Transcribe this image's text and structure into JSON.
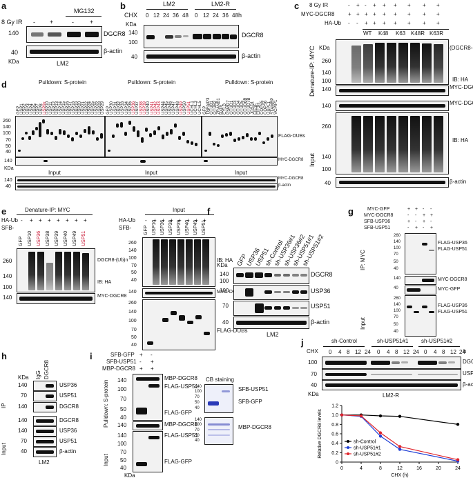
{
  "panels": {
    "a": {
      "label": "a",
      "mg132": "MG132",
      "ir": "8 Gy IR",
      "signs": [
        "-",
        "+",
        "-",
        "+"
      ],
      "mw": [
        "140",
        "40"
      ],
      "kda": "KDa",
      "targets": [
        "DGCR8",
        "β-actin"
      ],
      "cell": "LM2"
    },
    "b": {
      "label": "b",
      "cell_lines": [
        "LM2",
        "LM2-R"
      ],
      "chx": "CHX",
      "times": [
        "0",
        "12",
        "24",
        "36",
        "48",
        "0",
        "12",
        "24",
        "36",
        "48"
      ],
      "unit": "h",
      "mw": [
        "KDa",
        "140",
        "100",
        "40"
      ],
      "targets": [
        "DGCR8",
        "β-actin"
      ]
    },
    "c": {
      "label": "c",
      "rows": [
        {
          "name": "8 Gy IR",
          "signs": [
            "-",
            "+",
            "-",
            "+",
            "+",
            "+",
            "+",
            "+",
            "+"
          ]
        },
        {
          "name": "MYC-DGCR8",
          "signs": [
            "+",
            "+",
            "+",
            "+",
            "+",
            "+",
            "+",
            "+",
            "+"
          ]
        },
        {
          "name": "HA-Ub",
          "signs": [
            "-",
            "-",
            "+",
            "+",
            "+",
            "+",
            "+",
            "+",
            "+"
          ]
        }
      ],
      "ub_types": [
        "WT",
        "K48",
        "K63",
        "K48R",
        "K63R"
      ],
      "mw_ip": [
        "KDa",
        "260",
        "140",
        "100",
        "140"
      ],
      "mw_in": [
        "140",
        "260",
        "140",
        "100",
        "40"
      ],
      "sections": [
        "Denature-IP: MYC",
        "Input"
      ],
      "targets": [
        "(DGCR8-(Ub)n",
        "IB: HA",
        "MYC-DGCR8",
        "MYC-DGCR8",
        "IB: HA",
        "β-actin"
      ]
    },
    "d": {
      "label": "d",
      "pulldown": "Pulldown: S-protein",
      "group1": [
        "GFP",
        "USP1",
        "USP2",
        "USP3",
        "USP4",
        "USP5",
        "USP7",
        "USP8",
        "USP9x",
        "USP10",
        "USP11",
        "USP12",
        "USP13",
        "USP14",
        "USP15",
        "USP16",
        "USP17",
        "USP18",
        "USP19",
        "USP20",
        "USP21",
        "USP22",
        "USP24",
        "USP25",
        "USP26",
        "USP28",
        "USP29"
      ],
      "group2": [
        "GFP",
        "USP30",
        "USP31",
        "USP32",
        "USP33",
        "USP34",
        "USP35",
        "USP36",
        "USP37",
        "USP38",
        "USP39",
        "USP40",
        "USP41",
        "USP42",
        "USP43",
        "USP44",
        "USP45",
        "USP46",
        "USP47",
        "USP48",
        "USP49",
        "USP50",
        "USP51",
        "UCHL1",
        "UCHL3",
        "UCHL5"
      ],
      "group3": [
        "GFP",
        "TNFAIP3",
        "OTUB1",
        "OTUB2",
        "ZRANB1",
        "BAP1",
        "CYLD",
        "PSMD7",
        "OTUD1",
        "OTUD3",
        "OTUD4",
        "OTUD5",
        "OTUD6B",
        "OTUD7B",
        "JOSD1",
        "EIF3F",
        "EIF3H",
        "COPS5",
        "COPS6",
        "USPL1",
        "STAMBP",
        "VCPIP1"
      ],
      "mw": [
        "260",
        "140",
        "100",
        "70",
        "50",
        "40",
        "140"
      ],
      "mw_in": [
        "140",
        "40"
      ],
      "kda": "KDa",
      "input": "Input",
      "targets": [
        "FLAG-DUBs",
        "MYC-DGCR8",
        "MYC-DGCR8",
        "β-actin"
      ]
    },
    "e": {
      "label": "e",
      "ip_title": "Denature-IP: MYC",
      "input_title": "Input",
      "haub": "HA-Ub",
      "sfb": "SFB-",
      "signs": [
        "-",
        "+",
        "+",
        "+",
        "+",
        "+",
        "+",
        "+"
      ],
      "lanes": [
        "GFP",
        "USP10",
        "USP36",
        "USP38",
        "USP39",
        "USP40",
        "USP49",
        "USP51"
      ],
      "mw_ip": [
        "260",
        "140",
        "100",
        "140"
      ],
      "mw_in": [
        "260",
        "140",
        "100",
        "70",
        "50",
        "40",
        "140",
        "260",
        "140",
        "100",
        "70",
        "50",
        "40"
      ],
      "targets": [
        "DGCR8-(Ub)n",
        "IB: HA",
        "MYC-DGCR8",
        "IB: HA",
        "MYC-DGCR8",
        "FLAG-DUBs"
      ]
    },
    "f": {
      "label": "f",
      "lanes": [
        "GFP",
        "USP36",
        "USP51",
        "sh-Control",
        "sh-USP36#1",
        "sh-USP36#2",
        "sh-USP51#1",
        "sh-USP51#2"
      ],
      "mw": [
        "KDa",
        "140",
        "100",
        "100",
        "70",
        "40"
      ],
      "targets": [
        "DGCR8",
        "USP36",
        "USP51",
        "β-actin"
      ],
      "cell": "LM2"
    },
    "g": {
      "label": "g",
      "rows": [
        {
          "name": "MYC-GFP",
          "signs": [
            "+",
            "+",
            "-",
            "-"
          ]
        },
        {
          "name": "MYC-DGCR8",
          "signs": [
            "-",
            "-",
            "+",
            "+"
          ]
        },
        {
          "name": "SFB-USP36",
          "signs": [
            "+",
            "-",
            "+",
            "-"
          ]
        },
        {
          "name": "SFB-USP51",
          "signs": [
            "-",
            "+",
            "-",
            "+"
          ]
        }
      ],
      "mw": [
        "260",
        "140",
        "100",
        "70",
        "50",
        "40",
        "140",
        "40",
        "260",
        "140",
        "100",
        "70",
        "50",
        "40"
      ],
      "sections": [
        "IP: MYC",
        "Input"
      ],
      "targets": [
        "FLAG-USP36",
        "FLAG-USP51",
        "MYC-DGCR8",
        "MYC-GFP",
        "FLAG-USP36",
        "FLAG-USP51"
      ]
    },
    "h": {
      "label": "h",
      "kda": "KDa",
      "lanes": [
        "IgG",
        "DGCR8"
      ],
      "mw": [
        "140",
        "70",
        "140",
        "140",
        "140",
        "70",
        "40"
      ],
      "sections": [
        "IP",
        "Input"
      ],
      "targets": [
        "USP36",
        "USP51",
        "DGCR8",
        "DGCR8",
        "USP36",
        "USP51",
        "β-actin"
      ],
      "cell": "LM2"
    },
    "i": {
      "label": "i",
      "rows": [
        {
          "name": "SFB-GFP",
          "signs": [
            "+",
            "-"
          ]
        },
        {
          "name": "SFB-USP51",
          "signs": [
            "-",
            "+"
          ]
        },
        {
          "name": "MBP-DGCR8",
          "signs": [
            "+",
            "+"
          ]
        }
      ],
      "mw": [
        "140",
        "100",
        "70",
        "50",
        "40",
        "140",
        "140",
        "100",
        "70",
        "50",
        "40"
      ],
      "kda": "KDa",
      "sections": [
        "Pulldown: S-protein",
        "Input"
      ],
      "targets": [
        "MBP-DGCR8",
        "FLAG-USP51",
        "FLAG-GFP",
        "MBP-DGCR8",
        "FLAG-USP51",
        "FLAG-GFP"
      ],
      "cb": "CB staining",
      "cb_mw": [
        "140",
        "100",
        "70",
        "50",
        "40",
        "140",
        "100",
        "70",
        "50",
        "40"
      ],
      "cb_targets": [
        "SFB-USP51",
        "SFB-GFP",
        "MBP-DGCR8"
      ]
    },
    "j": {
      "label": "j",
      "groups": [
        "sh-Control",
        "sh-USP51#1",
        "sh-USP51#2"
      ],
      "chx": "CHX",
      "unit": "h",
      "times": [
        "0",
        "4",
        "8",
        "12",
        "24",
        "0",
        "4",
        "8",
        "12",
        "24",
        "0",
        "4",
        "8",
        "12",
        "24"
      ],
      "mw": [
        "100",
        "70",
        "40"
      ],
      "kda": "KDa",
      "targets": [
        "DGCR8",
        "USP51",
        "β-actin"
      ],
      "cell": "LM2-R"
    }
  },
  "chart_data": {
    "type": "line",
    "xlabel": "CHX (h)",
    "ylabel": "Relative DGCR8 levels",
    "x": [
      0,
      4,
      8,
      12,
      24
    ],
    "xticks": [
      "0",
      "4",
      "8",
      "12",
      "16",
      "20",
      "24"
    ],
    "yticks": [
      "0",
      "0.2",
      "0.4",
      "0.6",
      "0.8",
      "1.0",
      "1.2"
    ],
    "xlim": [
      0,
      24
    ],
    "ylim": [
      0,
      1.2
    ],
    "grid": false,
    "legend_position": "bottom-left",
    "series": [
      {
        "name": "sh-Control",
        "values": [
          1.0,
          1.0,
          0.98,
          0.97,
          0.8
        ],
        "color": "#000000"
      },
      {
        "name": "sh-USP51#1",
        "values": [
          1.0,
          0.97,
          0.55,
          0.27,
          0.02
        ],
        "color": "#1f3fd6"
      },
      {
        "name": "sh-USP51#2",
        "values": [
          1.0,
          0.98,
          0.62,
          0.33,
          0.05
        ],
        "color": "#e0242b"
      }
    ]
  }
}
